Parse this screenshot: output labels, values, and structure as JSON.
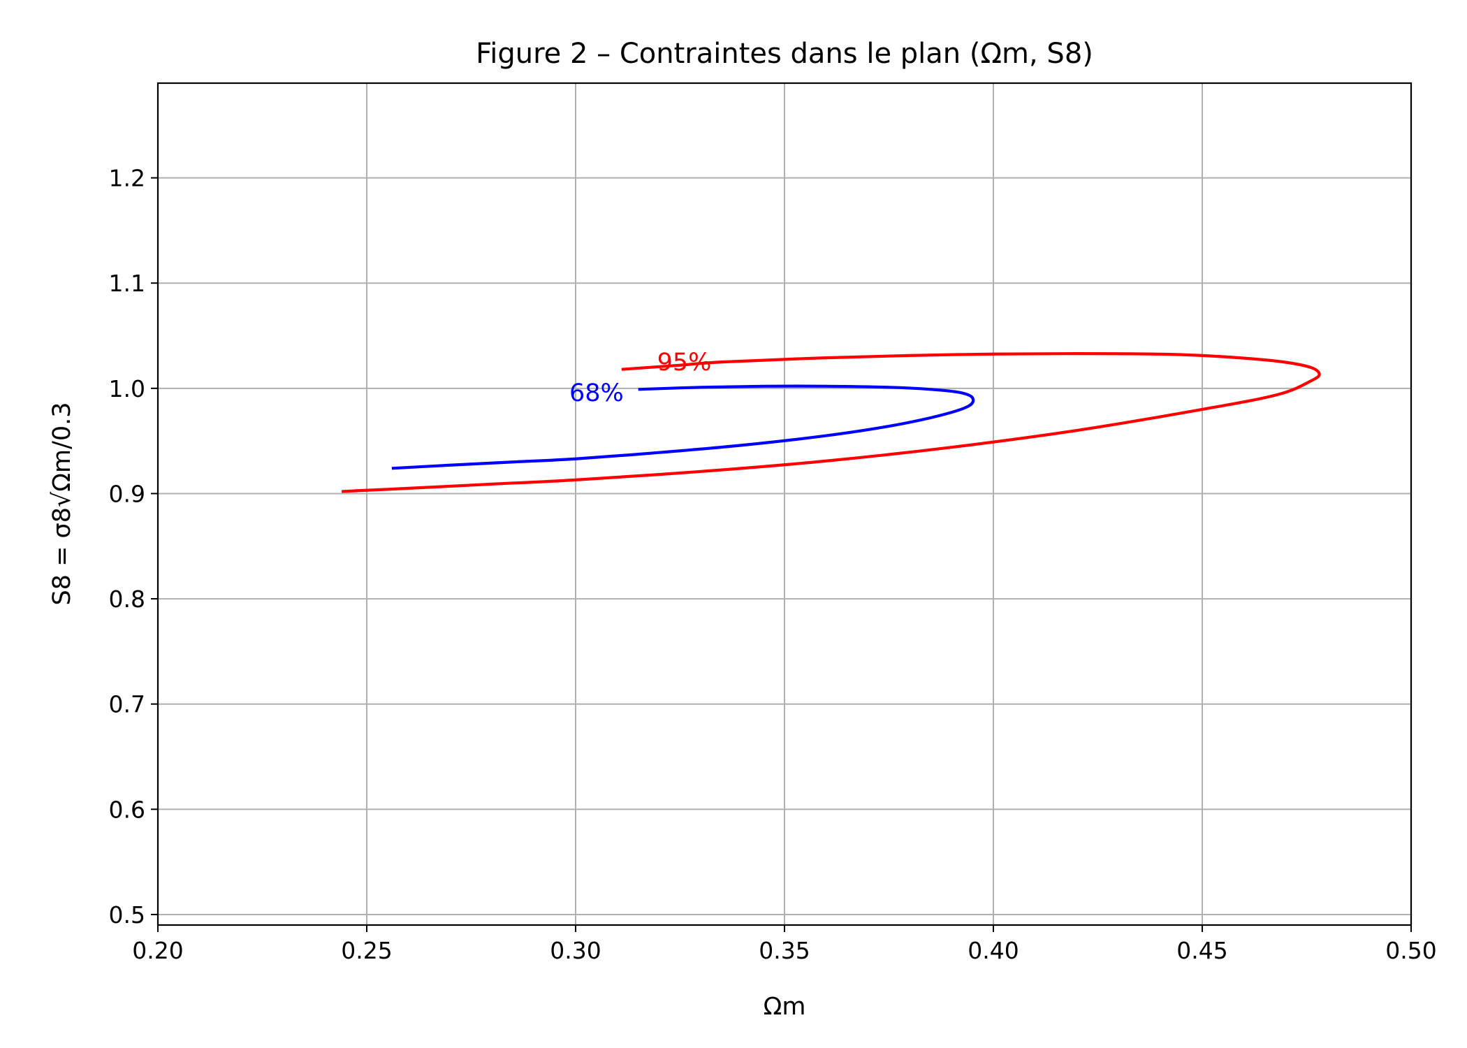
{
  "chart_data": {
    "type": "line",
    "title": "Figure 2 – Contraintes dans le plan (Ωm, S8)",
    "xlabel": "Ωm",
    "ylabel": "S8 = σ8√Ωm/0.3",
    "xlim": [
      0.2,
      0.5
    ],
    "ylim": [
      0.49,
      1.29
    ],
    "xticks": [
      0.2,
      0.25,
      0.3,
      0.35,
      0.4,
      0.45,
      0.5
    ],
    "xtick_labels": [
      "0.20",
      "0.25",
      "0.30",
      "0.35",
      "0.40",
      "0.45",
      "0.50"
    ],
    "yticks": [
      0.5,
      0.6,
      0.7,
      0.8,
      0.9,
      1.0,
      1.1,
      1.2
    ],
    "ytick_labels": [
      "0.5",
      "0.6",
      "0.7",
      "0.8",
      "0.9",
      "1.0",
      "1.1",
      "1.2"
    ],
    "grid": true,
    "series": [
      {
        "name": "68%",
        "color": "#0000ff",
        "x": [
          0.256,
          0.27,
          0.285,
          0.3,
          0.32,
          0.34,
          0.36,
          0.375,
          0.387,
          0.394,
          0.395,
          0.392,
          0.385,
          0.375,
          0.36,
          0.345,
          0.33,
          0.315
        ],
        "y": [
          0.924,
          0.927,
          0.93,
          0.933,
          0.939,
          0.946,
          0.955,
          0.964,
          0.974,
          0.983,
          0.991,
          0.996,
          0.999,
          1.001,
          1.002,
          1.002,
          1.001,
          0.999
        ]
      },
      {
        "name": "95%",
        "color": "#ff0000",
        "x": [
          0.244,
          0.26,
          0.28,
          0.3,
          0.33,
          0.36,
          0.39,
          0.42,
          0.45,
          0.468,
          0.476,
          0.478,
          0.475,
          0.465,
          0.445,
          0.42,
          0.39,
          0.36,
          0.335,
          0.325,
          0.311
        ],
        "y": [
          0.902,
          0.905,
          0.909,
          0.913,
          0.921,
          0.931,
          0.944,
          0.96,
          0.98,
          0.994,
          1.007,
          1.014,
          1.021,
          1.027,
          1.032,
          1.033,
          1.032,
          1.029,
          1.025,
          1.022,
          1.018
        ]
      }
    ],
    "annotations": [
      {
        "text": "68%",
        "x": 0.305,
        "y": 0.996,
        "color": "#0000ff",
        "series": "68%"
      },
      {
        "text": "95%",
        "x": 0.326,
        "y": 1.025,
        "color": "#ff0000",
        "series": "95%"
      }
    ]
  }
}
